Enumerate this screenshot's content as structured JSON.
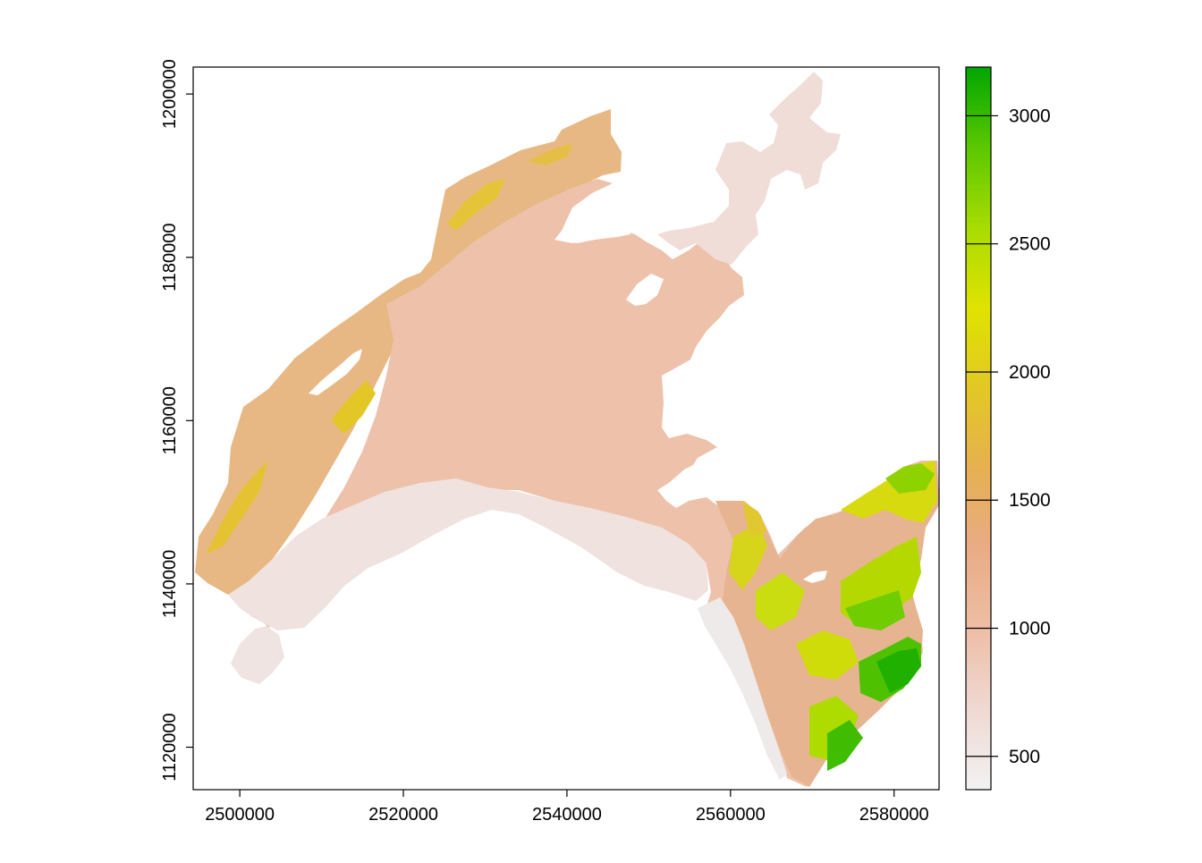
{
  "map": {
    "x_ticks": [
      "2500000",
      "2520000",
      "2540000",
      "2560000",
      "2580000"
    ],
    "y_ticks": [
      "1120000",
      "1140000",
      "1160000",
      "1180000",
      "1200000"
    ],
    "xlim": [
      2494300,
      2585500
    ],
    "ylim": [
      1114800,
      1203300
    ]
  },
  "legend": {
    "range": [
      370,
      3190
    ],
    "ticks": [
      "500",
      "1000",
      "1500",
      "2000",
      "2500",
      "3000"
    ],
    "tick_values": [
      500,
      1000,
      1500,
      2000,
      2500,
      3000
    ],
    "palette": [
      "#f2f2f2",
      "#efd9d2",
      "#eebea5",
      "#e9ac86",
      "#e6b050",
      "#e3c825",
      "#dfe300",
      "#a8dc00",
      "#5bc800",
      "#00a600"
    ]
  },
  "chart_data": {
    "type": "heatmap",
    "title": "",
    "xlabel": "",
    "ylabel": "",
    "xlim": [
      2494300,
      2585500
    ],
    "ylim": [
      1114800,
      1203300
    ],
    "value_range": [
      370,
      3190
    ],
    "legend_ticks": [
      500,
      1000,
      1500,
      2000,
      2500,
      3000
    ]
  }
}
